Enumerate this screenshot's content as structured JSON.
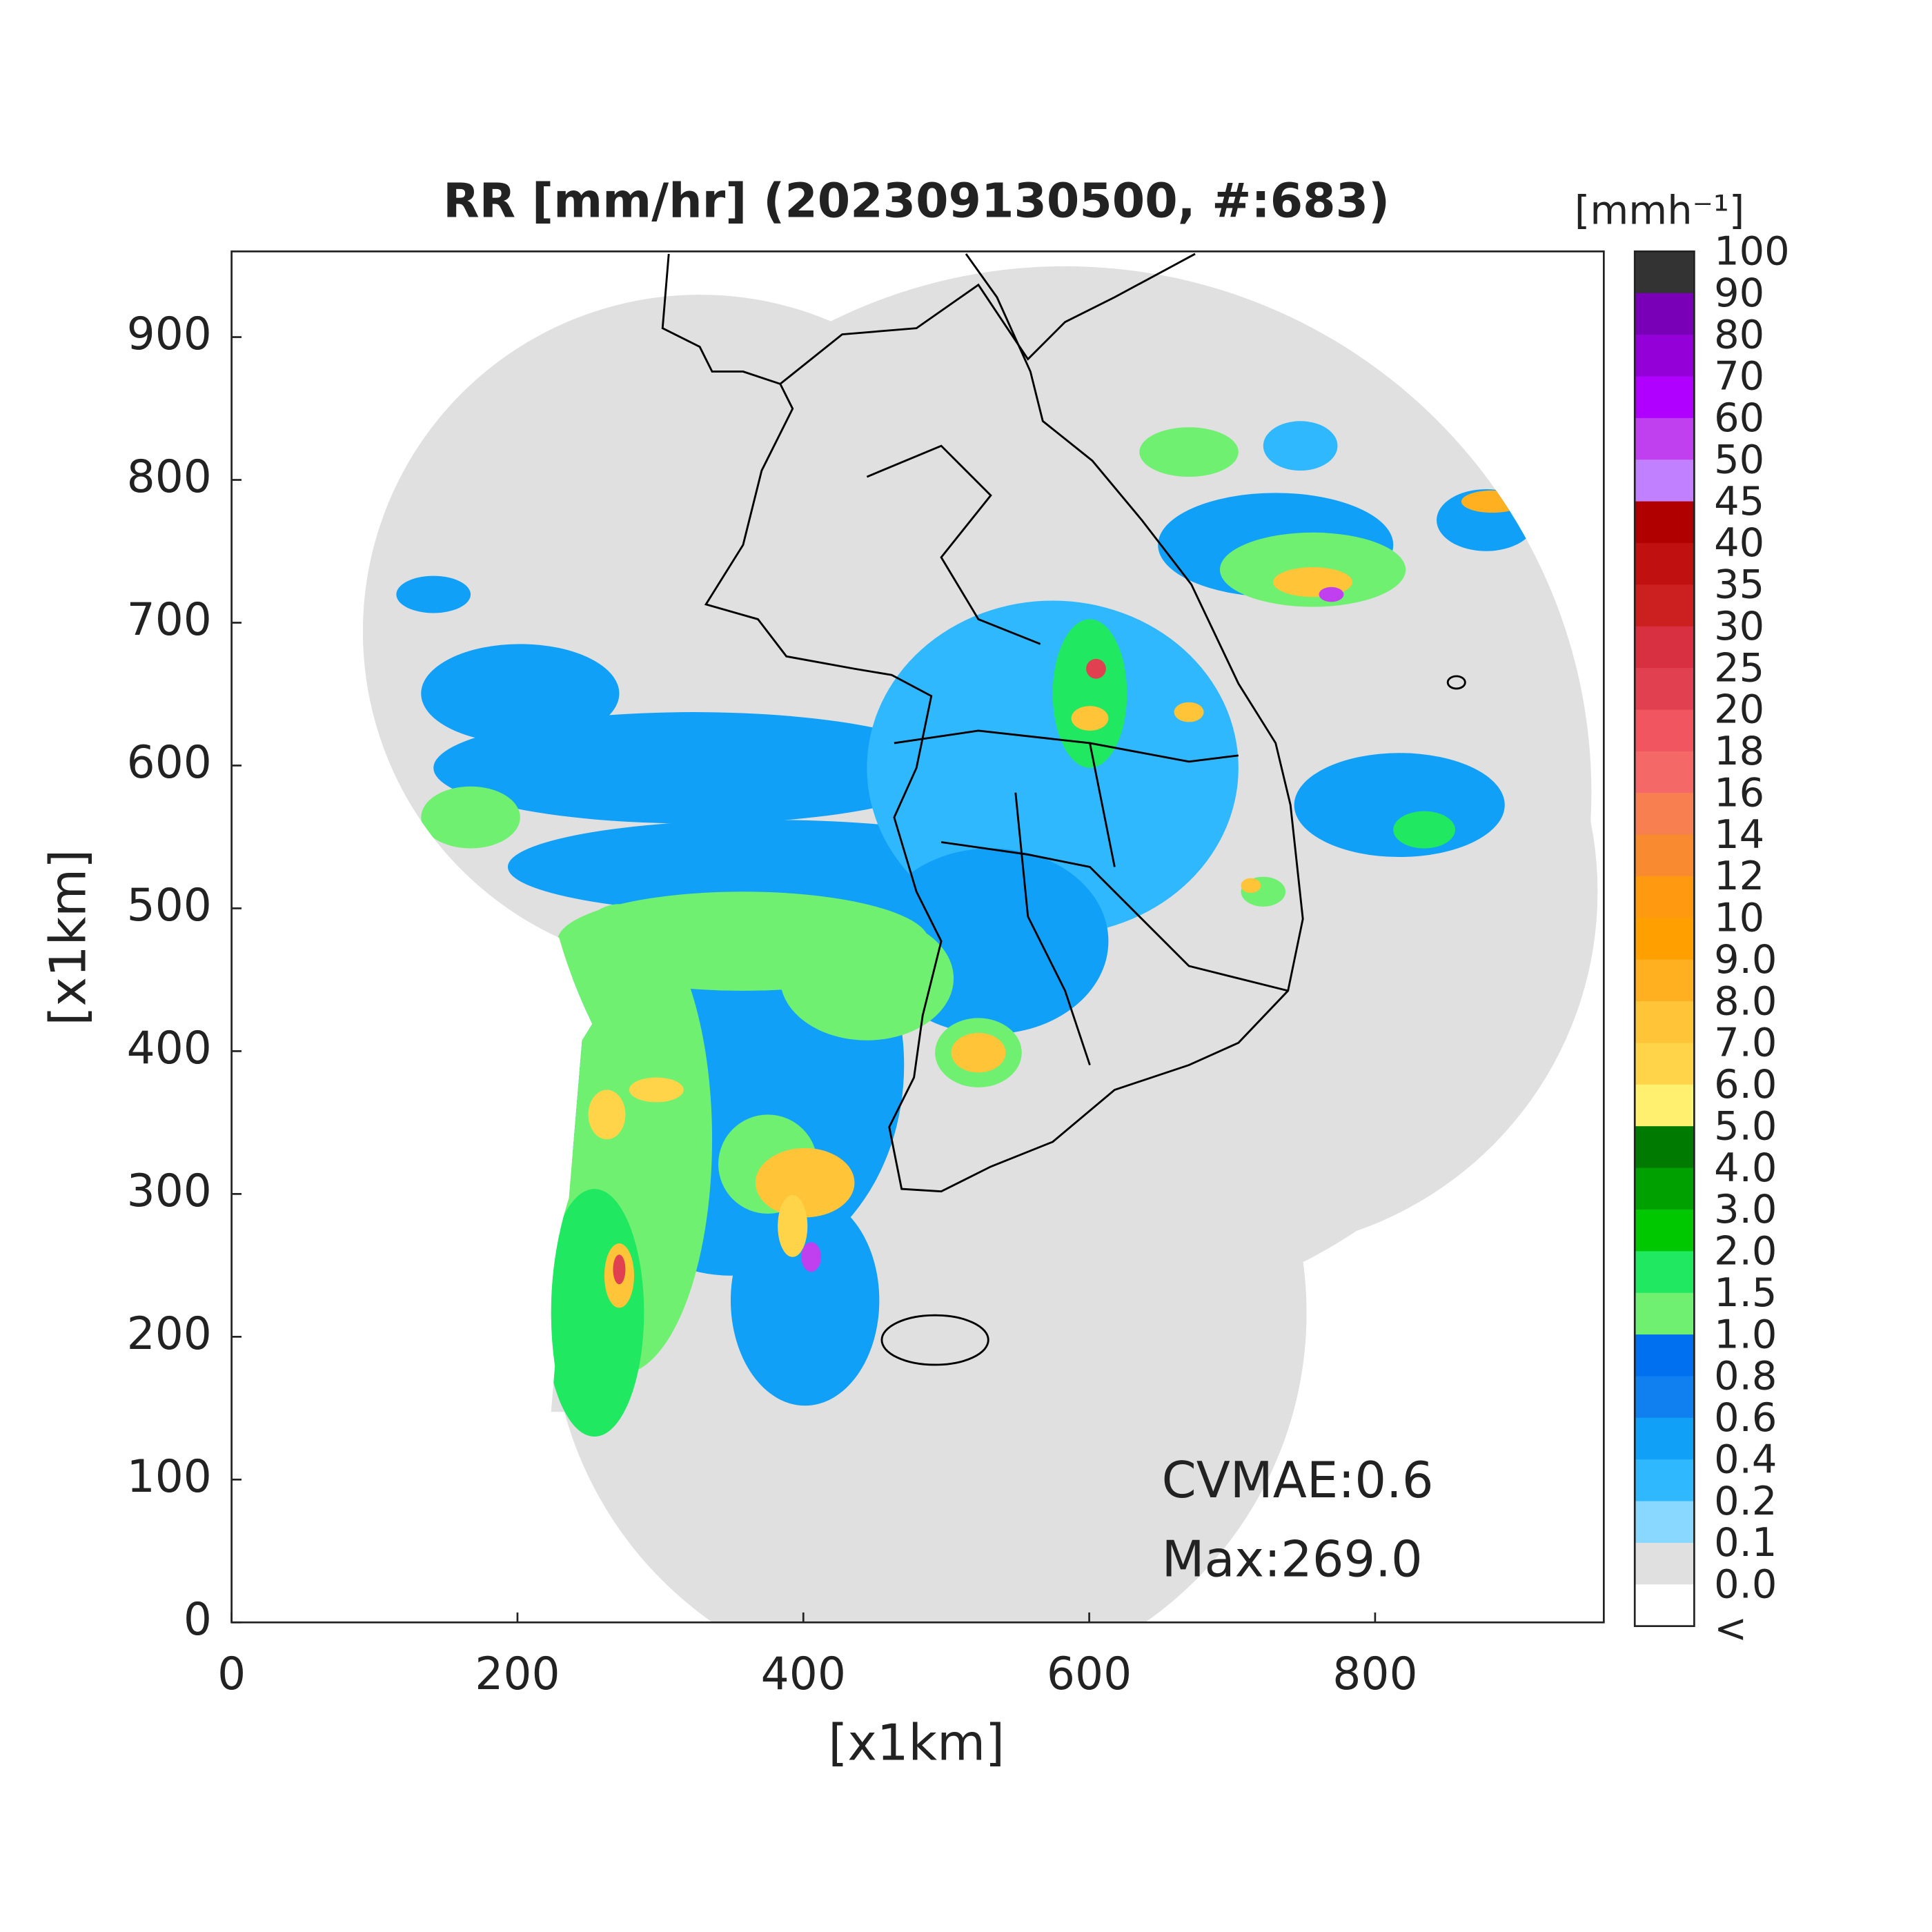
{
  "chart_data": {
    "type": "heatmap",
    "title": "RR [mm/hr] (202309130500, #:683)",
    "x_label": "[x1km]",
    "y_label": "[x1km]",
    "xlim": [
      0,
      960
    ],
    "ylim": [
      0,
      960
    ],
    "xticks": [
      0,
      200,
      400,
      600,
      800
    ],
    "yticks": [
      0,
      100,
      200,
      300,
      400,
      500,
      600,
      700,
      800,
      900
    ],
    "annotations": [
      "CVMAE:0.6",
      "Max:269.0"
    ],
    "colorbar": {
      "label": "[mmh⁻¹]",
      "ticks": [
        100,
        90,
        80,
        70,
        60,
        50,
        45,
        40,
        35,
        30,
        25,
        20,
        18,
        16,
        14,
        12,
        10,
        {
          "value": 9,
          "label": "9.0"
        },
        {
          "value": 8,
          "label": "8.0"
        },
        {
          "value": 7,
          "label": "7.0"
        },
        {
          "value": 6,
          "label": "6.0"
        },
        {
          "value": 5,
          "label": "5.0"
        },
        {
          "value": 4,
          "label": "4.0"
        },
        {
          "value": 3,
          "label": "3.0"
        },
        {
          "value": 2,
          "label": "2.0"
        },
        1.5,
        {
          "value": 1,
          "label": "1.0"
        },
        0.8,
        0.6,
        0.4,
        0.2,
        0.1,
        {
          "value": 0,
          "label": "0.0"
        }
      ],
      "below_label": "<",
      "colors": [
        "#333333",
        "#7a00b8",
        "#9400d8",
        "#b000ff",
        "#c040f0",
        "#c080ff",
        "#b00000",
        "#c01010",
        "#cc2020",
        "#d83040",
        "#e04050",
        "#f05560",
        "#f46868",
        "#f88050",
        "#fa8a30",
        "#ff9a10",
        "#ffa000",
        "#ffb020",
        "#ffc438",
        "#ffd448",
        "#fff070",
        "#007a00",
        "#00a000",
        "#00c800",
        "#20e860",
        "#70f070",
        "#0070f0",
        "#1080f0",
        "#10a0f8",
        "#30b8ff",
        "#88d8ff",
        "#e0e0e0",
        "#ffffff"
      ]
    }
  }
}
